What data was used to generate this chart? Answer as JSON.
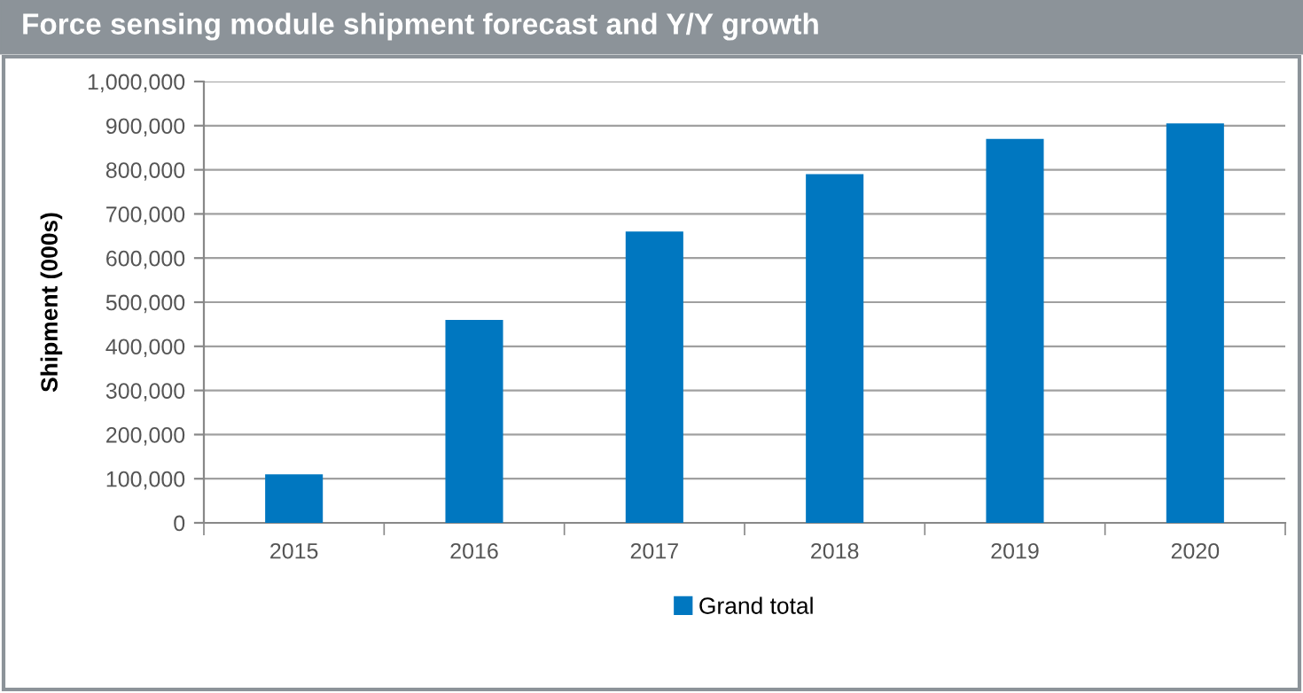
{
  "chart_data": {
    "type": "bar",
    "title": "Force sensing module shipment forecast and Y/Y growth",
    "ylabel": "Shipment (000s)",
    "categories": [
      "2015",
      "2016",
      "2017",
      "2018",
      "2019",
      "2020"
    ],
    "series": [
      {
        "name": "Grand total",
        "color": "#0077c0",
        "values": [
          110000,
          460000,
          660000,
          790000,
          870000,
          905000
        ]
      }
    ],
    "ylim": [
      0,
      1000000
    ],
    "yticks": [
      {
        "value": 0,
        "label": "0"
      },
      {
        "value": 100000,
        "label": "100,000"
      },
      {
        "value": 200000,
        "label": "200,000"
      },
      {
        "value": 300000,
        "label": "300,000"
      },
      {
        "value": 400000,
        "label": "400,000"
      },
      {
        "value": 500000,
        "label": "500,000"
      },
      {
        "value": 600000,
        "label": "600,000"
      },
      {
        "value": 700000,
        "label": "700,000"
      },
      {
        "value": 800000,
        "label": "800,000"
      },
      {
        "value": 900000,
        "label": "900,000"
      },
      {
        "value": 1000000,
        "label": "1,000,000"
      }
    ],
    "grid": "y",
    "legend": "bottom"
  }
}
